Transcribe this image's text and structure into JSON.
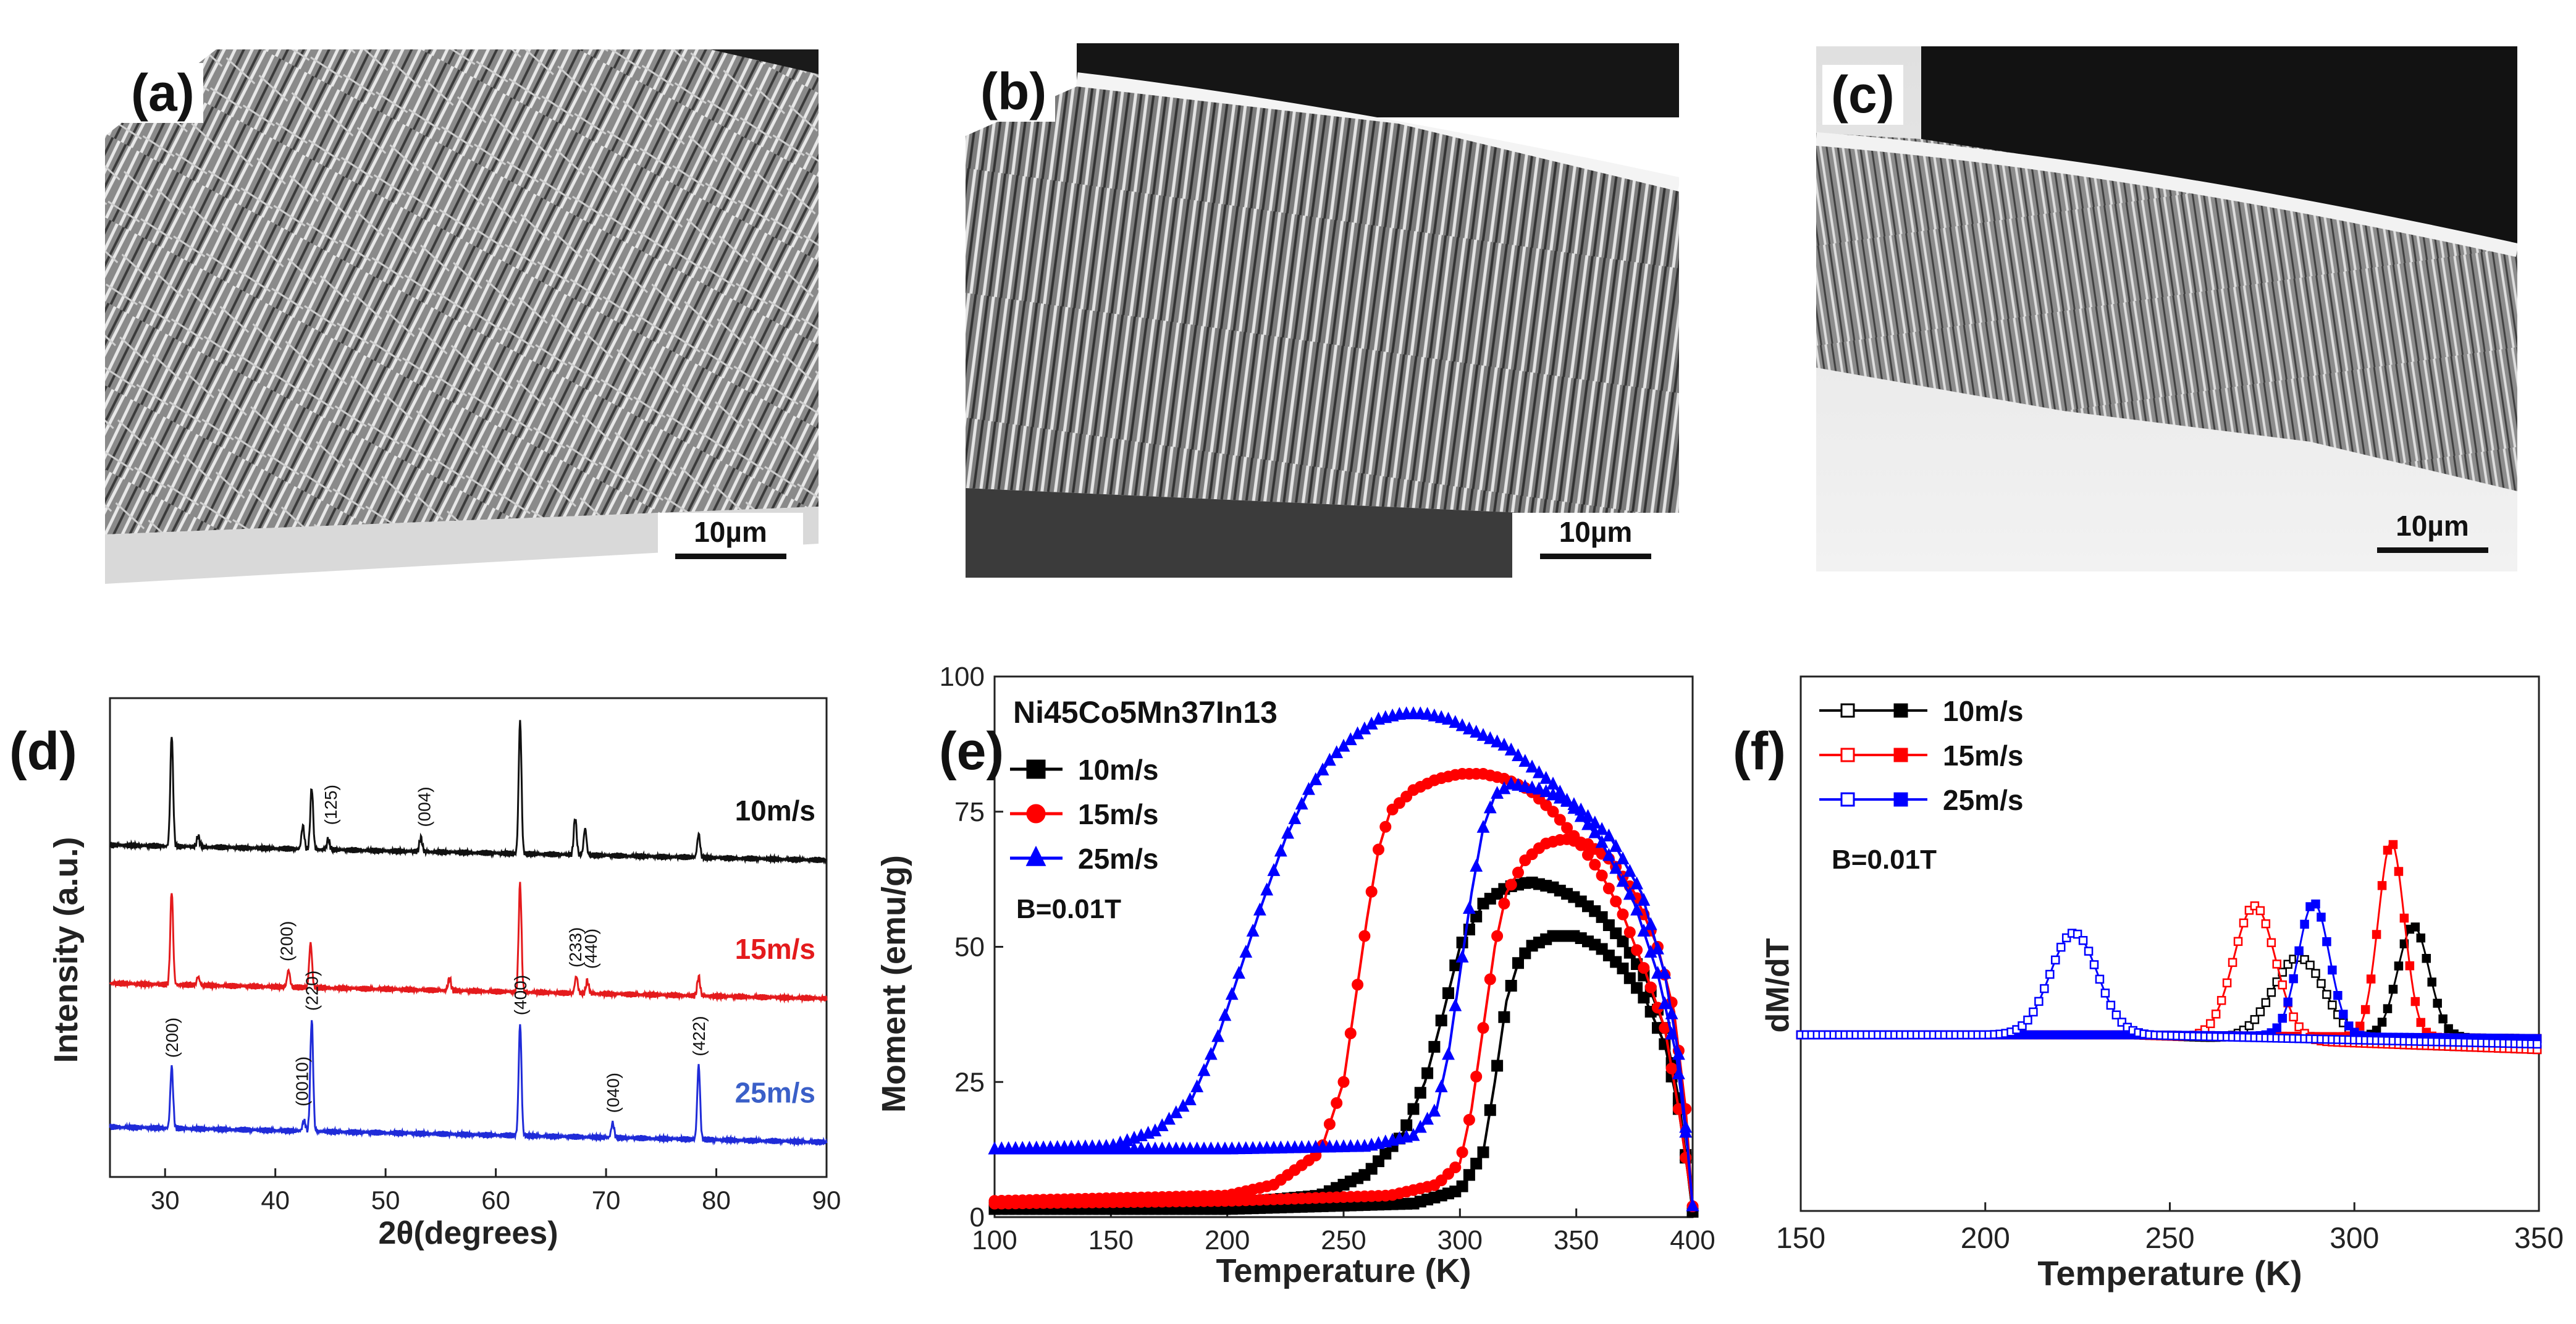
{
  "sem_panels": [
    {
      "label": "(a)",
      "scale": "10µm"
    },
    {
      "label": "(b)",
      "scale": "10µm"
    },
    {
      "label": "(c)",
      "scale": "10µm"
    }
  ],
  "chart_data": [
    {
      "panel": "(d)",
      "type": "line",
      "xlabel": "2θ(degrees)",
      "ylabel": "Intensity  (a.u.)",
      "xlim": [
        25,
        90
      ],
      "xticks": [
        30,
        40,
        50,
        60,
        70,
        80,
        90
      ],
      "series": [
        {
          "name": "10m/s",
          "color": "#111111",
          "label_color": "#111111",
          "baseline": 3.0,
          "scale": 2.5,
          "peaks": [
            [
              30.6,
              1.05
            ],
            [
              33.0,
              0.1
            ],
            [
              42.5,
              0.22
            ],
            [
              43.3,
              0.58
            ],
            [
              44.8,
              0.1
            ],
            [
              53.2,
              0.13
            ],
            [
              62.2,
              1.25
            ],
            [
              67.2,
              0.35
            ],
            [
              68.1,
              0.25
            ],
            [
              78.4,
              0.22
            ]
          ],
          "peak_labels": [
            {
              "text": "(125)",
              "x": 45.0
            },
            {
              "text": "(004)",
              "x": 53.5
            }
          ]
        },
        {
          "name": "15m/s",
          "color": "#e41a1c",
          "label_color": "#e41a1c",
          "baseline": 1.7,
          "scale": 2.5,
          "peaks": [
            [
              30.6,
              0.88
            ],
            [
              33.0,
              0.08
            ],
            [
              41.2,
              0.16
            ],
            [
              43.2,
              0.42
            ],
            [
              55.8,
              0.12
            ],
            [
              62.2,
              1.02
            ],
            [
              67.3,
              0.16
            ],
            [
              68.3,
              0.12
            ],
            [
              78.4,
              0.18
            ]
          ],
          "peak_labels": [
            {
              "text": "(200)",
              "x": 41.0
            },
            {
              "text": "(233)",
              "x": 67.2
            },
            {
              "text": "(440)",
              "x": 68.6
            }
          ]
        },
        {
          "name": "25m/s",
          "color": "#1f2bd8",
          "label_color": "#3a5fc8",
          "baseline": 0.35,
          "scale": 2.5,
          "peaks": [
            [
              30.6,
              0.58
            ],
            [
              42.6,
              0.1
            ],
            [
              43.3,
              1.05
            ],
            [
              62.2,
              1.05
            ],
            [
              70.6,
              0.14
            ],
            [
              78.4,
              0.7
            ]
          ],
          "peak_labels": [
            {
              "text": "(200)",
              "x": 30.6
            },
            {
              "text": "(0010)",
              "x": 42.4
            },
            {
              "text": "(220)",
              "x": 43.3
            },
            {
              "text": "(400)",
              "x": 62.2
            },
            {
              "text": "(040)",
              "x": 70.6
            },
            {
              "text": "(422)",
              "x": 78.4
            }
          ]
        }
      ]
    },
    {
      "panel": "(e)",
      "type": "line",
      "title": "Ni45Co5Mn37In13",
      "xlabel": "Temperature (K)",
      "ylabel": "Moment (emu/g)",
      "xlim": [
        100,
        400
      ],
      "ylim": [
        0,
        100
      ],
      "xticks": [
        100,
        150,
        200,
        250,
        300,
        350,
        400
      ],
      "yticks": [
        0,
        25,
        50,
        75,
        100
      ],
      "field": "B=0.01T",
      "series": [
        {
          "name": "10m/s",
          "color": "#000000",
          "marker": "square",
          "cooling": [
            [
              100,
              1.5
            ],
            [
              200,
              1.5
            ],
            [
              280,
              2.5
            ],
            [
              300,
              5
            ],
            [
              310,
              12
            ],
            [
              315,
              25
            ],
            [
              320,
              40
            ],
            [
              325,
              47
            ],
            [
              330,
              50
            ],
            [
              340,
              52
            ],
            [
              350,
              52
            ],
            [
              360,
              50
            ],
            [
              370,
              46
            ],
            [
              380,
              40
            ],
            [
              388,
              32
            ],
            [
              394,
              20
            ],
            [
              398,
              8
            ],
            [
              400,
              1
            ]
          ],
          "heating": [
            [
              100,
              1.8
            ],
            [
              200,
              2.5
            ],
            [
              240,
              4
            ],
            [
              260,
              8
            ],
            [
              275,
              15
            ],
            [
              285,
              25
            ],
            [
              293,
              38
            ],
            [
              300,
              50
            ],
            [
              310,
              58
            ],
            [
              320,
              61
            ],
            [
              330,
              62
            ],
            [
              340,
              61
            ],
            [
              350,
              59
            ],
            [
              360,
              56
            ],
            [
              370,
              51
            ],
            [
              380,
              44
            ],
            [
              388,
              35
            ],
            [
              394,
              22
            ],
            [
              398,
              8
            ],
            [
              400,
              1
            ]
          ]
        },
        {
          "name": "15m/s",
          "color": "#ff0000",
          "marker": "circle",
          "cooling": [
            [
              100,
              2.5
            ],
            [
              200,
              3
            ],
            [
              270,
              4
            ],
            [
              290,
              6
            ],
            [
              300,
              10
            ],
            [
              305,
              20
            ],
            [
              310,
              35
            ],
            [
              315,
              50
            ],
            [
              320,
              60
            ],
            [
              328,
              66
            ],
            [
              336,
              69
            ],
            [
              345,
              70
            ],
            [
              355,
              69
            ],
            [
              365,
              66
            ],
            [
              375,
              60
            ],
            [
              385,
              50
            ],
            [
              392,
              38
            ],
            [
              397,
              20
            ],
            [
              400,
              2
            ]
          ],
          "heating": [
            [
              100,
              3
            ],
            [
              200,
              4
            ],
            [
              220,
              6
            ],
            [
              240,
              12
            ],
            [
              250,
              25
            ],
            [
              255,
              40
            ],
            [
              260,
              55
            ],
            [
              265,
              68
            ],
            [
              270,
              75
            ],
            [
              280,
              79
            ],
            [
              290,
              81
            ],
            [
              300,
              82
            ],
            [
              310,
              82
            ],
            [
              320,
              81
            ],
            [
              330,
              79
            ],
            [
              340,
              75
            ],
            [
              350,
              70
            ],
            [
              360,
              64
            ],
            [
              370,
              56
            ],
            [
              380,
              45
            ],
            [
              388,
              35
            ],
            [
              394,
              20
            ],
            [
              398,
              8
            ],
            [
              400,
              2
            ]
          ]
        },
        {
          "name": "25m/s",
          "color": "#0000ff",
          "marker": "triangle",
          "cooling": [
            [
              100,
              12.5
            ],
            [
              200,
              12.5
            ],
            [
              260,
              13
            ],
            [
              280,
              15
            ],
            [
              290,
              20
            ],
            [
              295,
              30
            ],
            [
              300,
              45
            ],
            [
              305,
              60
            ],
            [
              310,
              72
            ],
            [
              315,
              78
            ],
            [
              322,
              80
            ],
            [
              335,
              79
            ],
            [
              350,
              76
            ],
            [
              365,
              70
            ],
            [
              378,
              60
            ],
            [
              388,
              45
            ],
            [
              394,
              30
            ],
            [
              398,
              12
            ],
            [
              400,
              2
            ]
          ],
          "heating": [
            [
              100,
              12.5
            ],
            [
              150,
              13
            ],
            [
              170,
              16
            ],
            [
              185,
              22
            ],
            [
              195,
              32
            ],
            [
              205,
              45
            ],
            [
              215,
              58
            ],
            [
              225,
              70
            ],
            [
              235,
              79
            ],
            [
              245,
              85
            ],
            [
              255,
              89
            ],
            [
              265,
              92
            ],
            [
              275,
              93
            ],
            [
              285,
              93
            ],
            [
              295,
              92
            ],
            [
              305,
              90
            ],
            [
              320,
              87
            ],
            [
              340,
              80
            ],
            [
              360,
              70
            ],
            [
              375,
              58
            ],
            [
              385,
              45
            ],
            [
              393,
              30
            ],
            [
              398,
              12
            ],
            [
              400,
              2
            ]
          ]
        }
      ]
    },
    {
      "panel": "(f)",
      "type": "line",
      "xlabel": "Temperature (K)",
      "ylabel": "dM/dT",
      "xlim": [
        150,
        350
      ],
      "xticks": [
        150,
        200,
        250,
        300,
        350
      ],
      "field": "B=0.01T",
      "series": [
        {
          "name": "10m/s",
          "color": "#000000",
          "curves": [
            {
              "baseline": 0,
              "peaks": [
                [
                  316,
                  0.6,
                  6
                ]
              ],
              "drift": -0.02,
              "open": false
            },
            {
              "baseline": 0,
              "peaks": [
                [
                  285,
                  0.45,
                  10
                ]
              ],
              "drift": -0.08,
              "open": true
            }
          ]
        },
        {
          "name": "15m/s",
          "color": "#ff0000",
          "curves": [
            {
              "baseline": 0,
              "peaks": [
                [
                  310,
                  1.05,
                  5
                ]
              ],
              "drift": -0.02,
              "open": false
            },
            {
              "baseline": 0,
              "peaks": [
                [
                  273,
                  0.72,
                  8
                ]
              ],
              "drift": -0.08,
              "open": true
            }
          ]
        },
        {
          "name": "25m/s",
          "color": "#0000ff",
          "curves": [
            {
              "baseline": 0,
              "peaks": [
                [
                  289,
                  0.72,
                  6
                ]
              ],
              "drift": -0.02,
              "open": false
            },
            {
              "baseline": 0,
              "peaks": [
                [
                  224,
                  0.55,
                  9
                ]
              ],
              "drift": -0.05,
              "open": true
            }
          ]
        }
      ]
    }
  ]
}
